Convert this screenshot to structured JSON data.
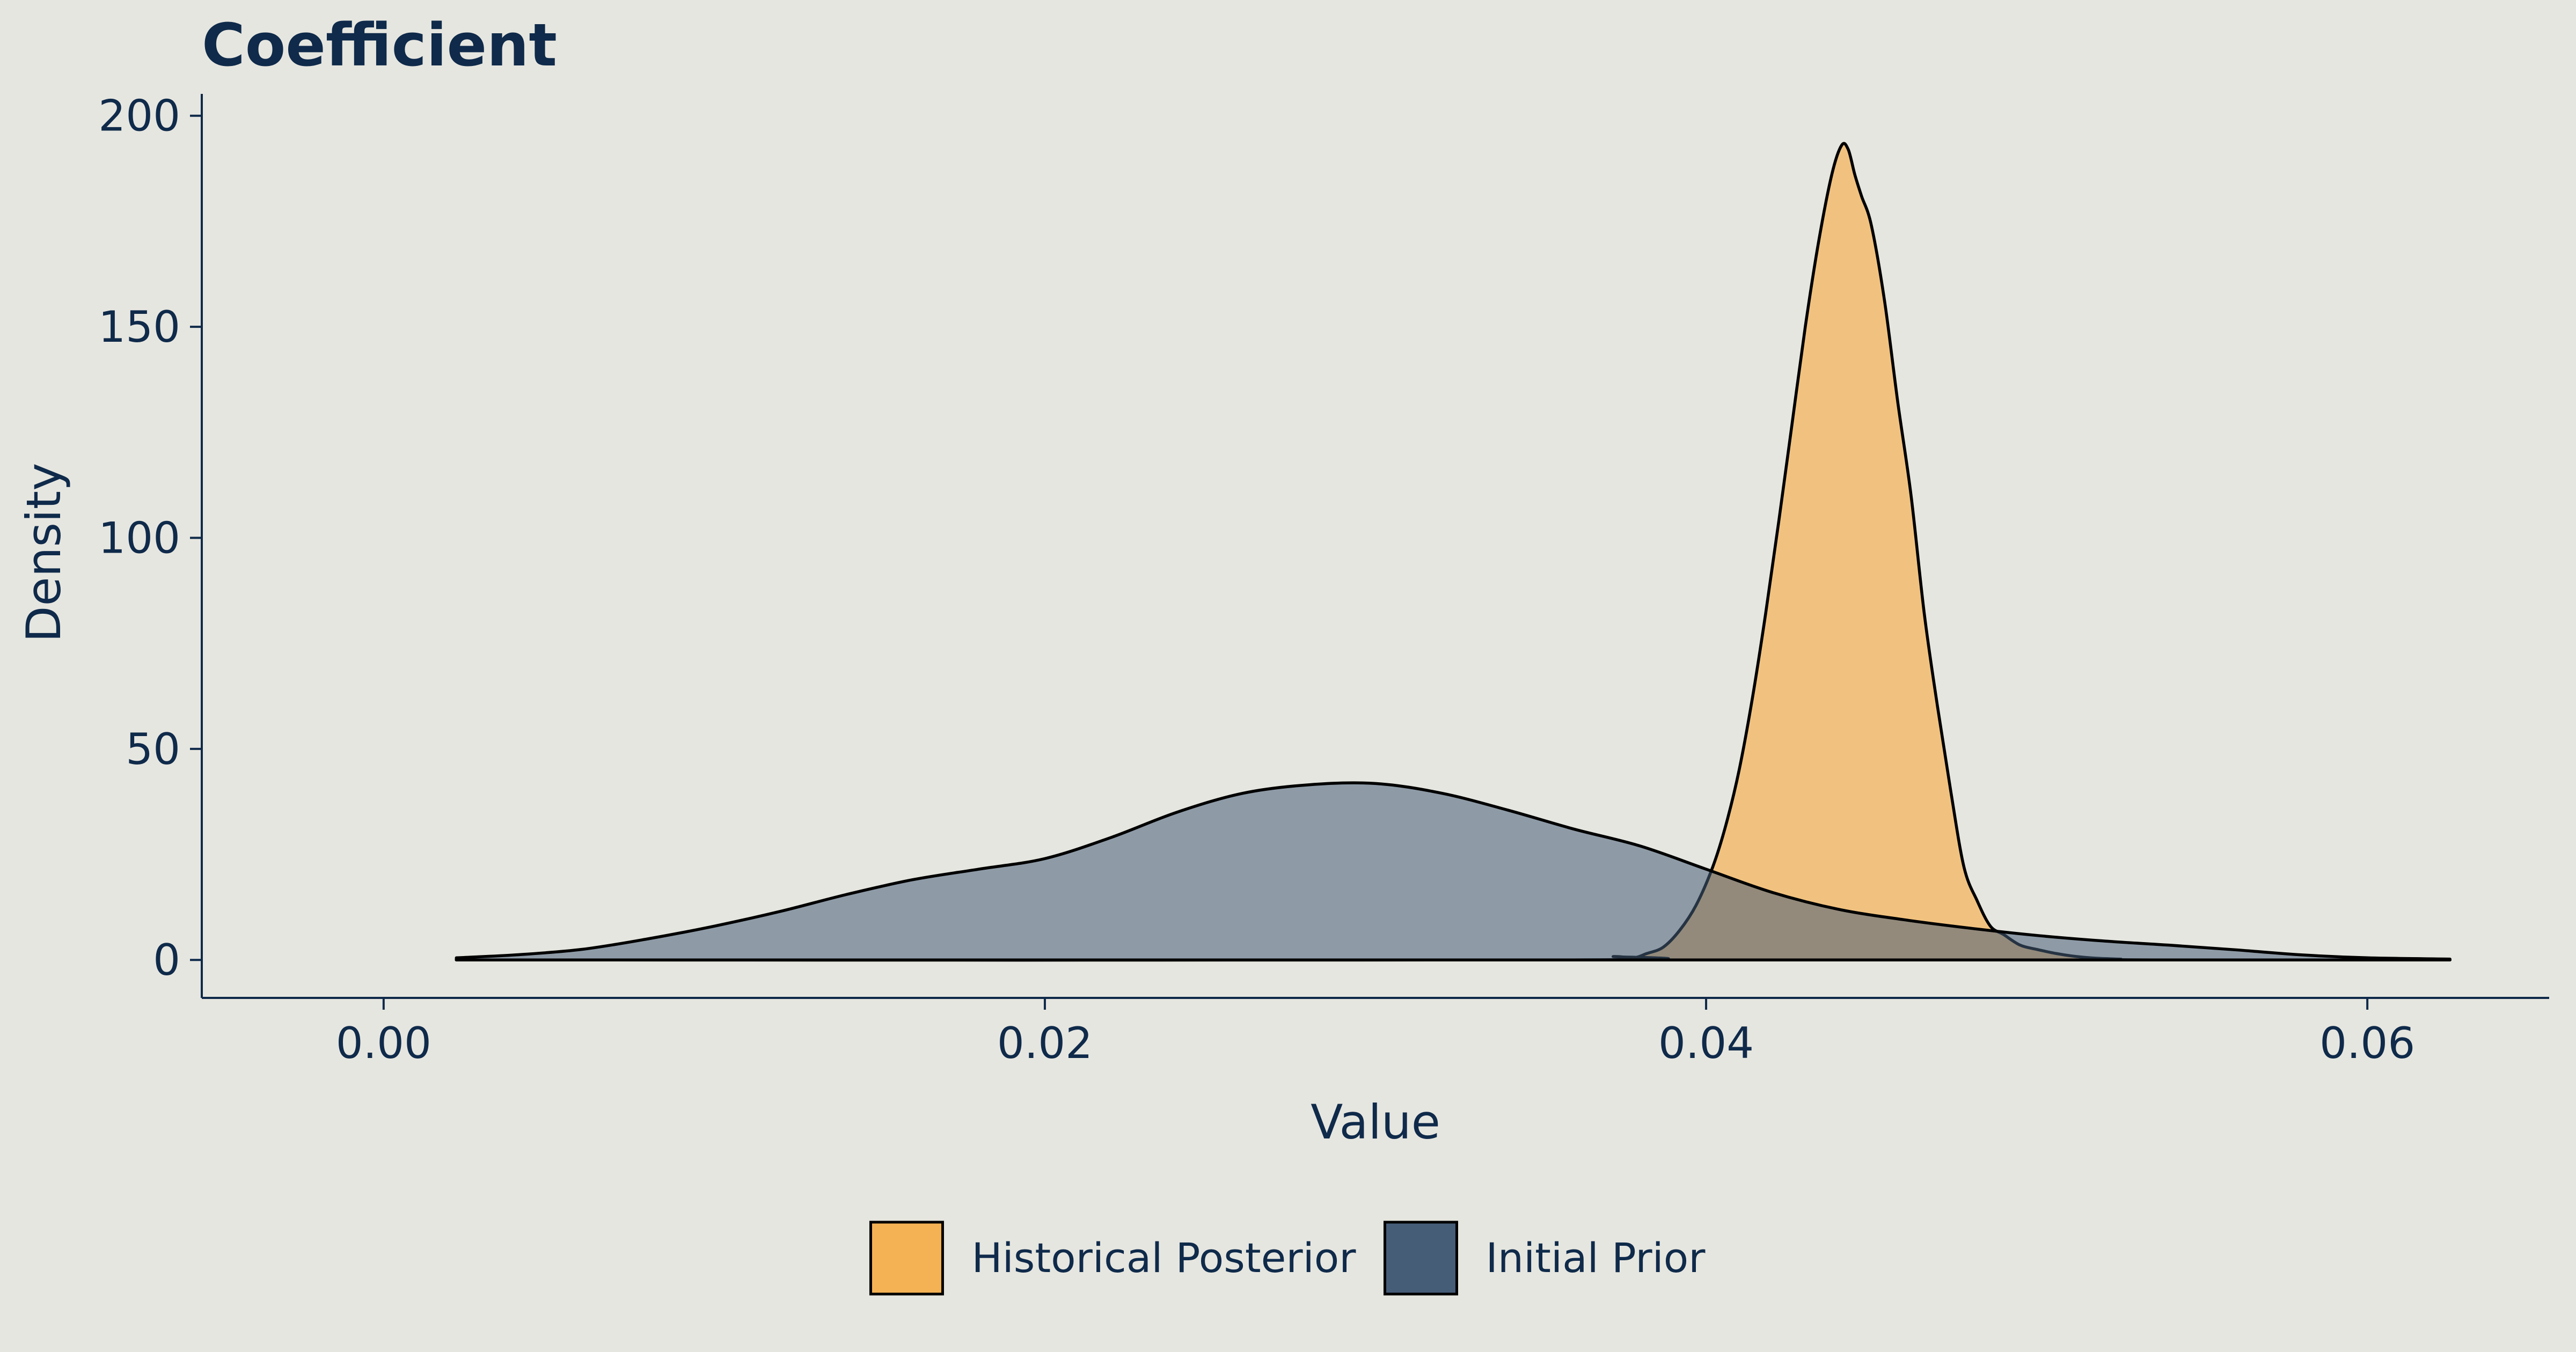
{
  "chart_data": {
    "type": "area",
    "title": "Coefficient",
    "xlabel": "Value",
    "ylabel": "Density",
    "xlim": [
      -0.0055,
      0.0655
    ],
    "ylim": [
      -9,
      202
    ],
    "x_ticks": [
      {
        "value": 0.0,
        "label": "0.00"
      },
      {
        "value": 0.02,
        "label": "0.02"
      },
      {
        "value": 0.04,
        "label": "0.04"
      },
      {
        "value": 0.06,
        "label": "0.06"
      }
    ],
    "y_ticks": [
      {
        "value": 0,
        "label": "0"
      },
      {
        "value": 50,
        "label": "50"
      },
      {
        "value": 100,
        "label": "100"
      },
      {
        "value": 150,
        "label": "150"
      },
      {
        "value": 200,
        "label": "200"
      }
    ],
    "grid": false,
    "legend_position": "bottom",
    "series": [
      {
        "name": "Historical Posterior",
        "color": "#f5b255",
        "opacity": 0.7,
        "x": [
          0.0022,
          0.036,
          0.0372,
          0.0378,
          0.0382,
          0.0387,
          0.0392,
          0.0397,
          0.0402,
          0.0406,
          0.041,
          0.0414,
          0.0418,
          0.0422,
          0.0426,
          0.043,
          0.0434,
          0.0438,
          0.0441,
          0.0443,
          0.0445,
          0.0447,
          0.045,
          0.0454,
          0.0458,
          0.0462,
          0.0466,
          0.047,
          0.0474,
          0.0478,
          0.0482,
          0.0486,
          0.049,
          0.0495,
          0.05,
          0.0506,
          0.0512,
          0.0518,
          0.0525,
          0.0535,
          0.0625
        ],
        "y": [
          0,
          0,
          0.8,
          0.5,
          1.5,
          3,
          7,
          13,
          22,
          32,
          45,
          62,
          82,
          104,
          127,
          150,
          170,
          186,
          193,
          192,
          186,
          181,
          174,
          156,
          132,
          110,
          82,
          60,
          40,
          22,
          14,
          8,
          6,
          3.5,
          2.5,
          1.5,
          0.8,
          0.4,
          0.2,
          0,
          0
        ]
      },
      {
        "name": "Initial Prior",
        "color": "#465d78",
        "opacity": 0.55,
        "x": [
          0.0022,
          0.004,
          0.006,
          0.008,
          0.01,
          0.012,
          0.014,
          0.016,
          0.018,
          0.02,
          0.022,
          0.024,
          0.026,
          0.028,
          0.03,
          0.032,
          0.034,
          0.036,
          0.038,
          0.04,
          0.042,
          0.044,
          0.046,
          0.048,
          0.05,
          0.052,
          0.054,
          0.056,
          0.058,
          0.06,
          0.0625
        ],
        "y": [
          0.5,
          1.2,
          2.5,
          5,
          8,
          11.5,
          15.5,
          19,
          21.5,
          24,
          29,
          35,
          39.5,
          41.5,
          41.8,
          39.5,
          35.5,
          31,
          27,
          21.5,
          16,
          12,
          9.5,
          7.5,
          5.8,
          4.5,
          3.5,
          2.4,
          1.2,
          0.5,
          0.2
        ]
      }
    ]
  }
}
